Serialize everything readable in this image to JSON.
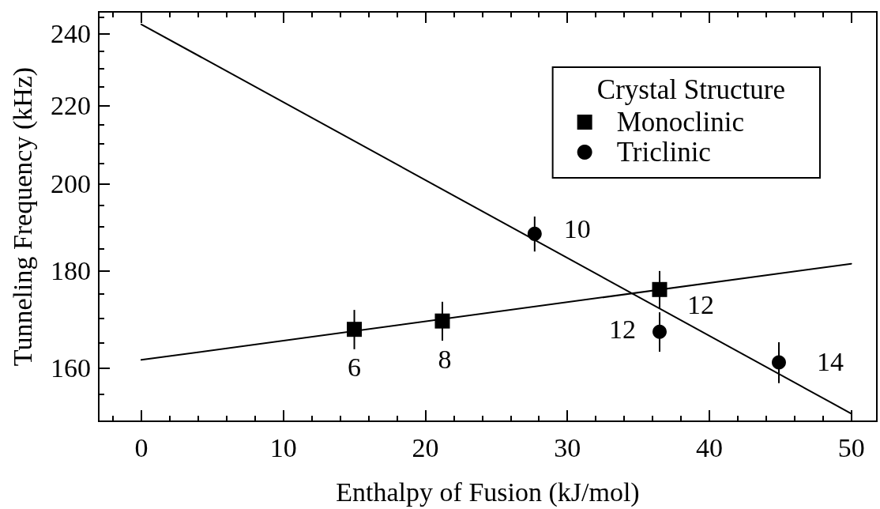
{
  "chart_data": {
    "type": "scatter",
    "xlabel": "Enthalpy of Fusion (kJ/mol)",
    "ylabel": "Tunneling Frequency (kHz)",
    "legend_title": "Crystal Structure",
    "legend": "top right",
    "log": "y",
    "xlim": [
      -3,
      51.8
    ],
    "xticks": [
      {
        "value": -2,
        "label": null
      },
      0,
      {
        "value": 2,
        "label": null
      },
      {
        "value": 4,
        "label": null
      },
      {
        "value": 6,
        "label": null
      },
      {
        "value": 8,
        "label": null
      },
      10,
      {
        "value": 12,
        "label": null
      },
      {
        "value": 14,
        "label": null
      },
      {
        "value": 16,
        "label": null
      },
      {
        "value": 18,
        "label": null
      },
      20,
      {
        "value": 22,
        "label": null
      },
      {
        "value": 24,
        "label": null
      },
      {
        "value": 26,
        "label": null
      },
      {
        "value": 28,
        "label": null
      },
      30,
      {
        "value": 32,
        "label": null
      },
      {
        "value": 34,
        "label": null
      },
      {
        "value": 36,
        "label": null
      },
      {
        "value": 38,
        "label": null
      },
      40,
      {
        "value": 42,
        "label": null
      },
      {
        "value": 44,
        "label": null
      },
      {
        "value": 46,
        "label": null
      },
      {
        "value": 48,
        "label": null
      },
      50
    ],
    "ylim": [
      150,
      246.5
    ],
    "yticks": [
      {
        "value": 155,
        "label": null
      },
      160,
      {
        "value": 165,
        "label": null
      },
      {
        "value": 170,
        "label": null
      },
      {
        "value": 175,
        "label": null
      },
      180,
      {
        "value": 185,
        "label": null
      },
      {
        "value": 190,
        "label": null
      },
      {
        "value": 195,
        "label": null
      },
      200,
      {
        "value": 205,
        "label": null
      },
      {
        "value": 210,
        "label": null
      },
      {
        "value": 215,
        "label": null
      },
      220,
      {
        "value": 225,
        "label": null
      },
      {
        "value": 230,
        "label": null
      },
      {
        "value": 235,
        "label": null
      },
      240,
      {
        "value": 245,
        "label": null
      }
    ],
    "series": [
      {
        "name": "Monoclinic",
        "marker": "square",
        "color": "#000000",
        "x": [
          15,
          21.2,
          36.5
        ],
        "values": [
          167.7,
          169.4,
          176.0
        ],
        "errors": [
          4,
          4,
          4
        ]
      },
      {
        "name": "Triclinic",
        "marker": "circle",
        "color": "#000000",
        "x": [
          27.7,
          36.5,
          44.9
        ],
        "values": [
          188.3,
          167.2,
          161.1
        ],
        "errors": [
          4,
          4,
          4
        ]
      },
      {
        "type": "line",
        "marker": "none",
        "line_style": "solid",
        "color": "#000000",
        "x": [
          0,
          50
        ],
        "values": [
          161.6,
          181.6
        ]
      },
      {
        "type": "line",
        "marker": "none",
        "line_style": "solid",
        "color": "#000000",
        "x": [
          0,
          50
        ],
        "values": [
          242.8,
          151.4
        ]
      }
    ],
    "annotations": [
      "6",
      "8",
      "10",
      "12",
      "12",
      "14"
    ]
  }
}
